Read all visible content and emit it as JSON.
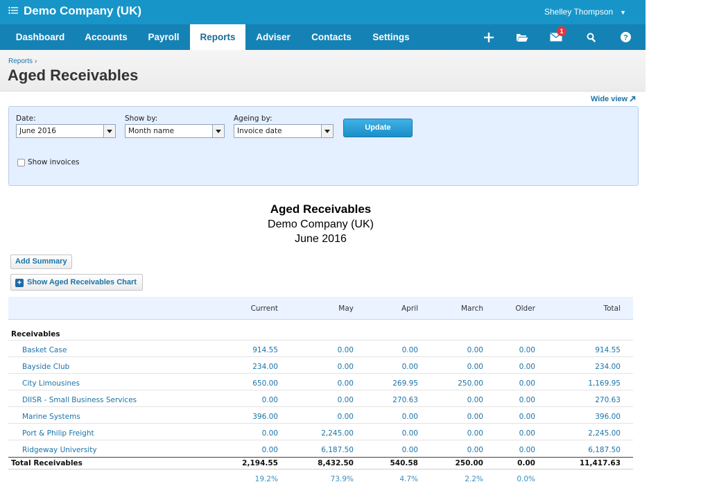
{
  "topbar": {
    "org_name": "Demo Company (UK)",
    "user_name": "Shelley Thompson",
    "caret": "▼"
  },
  "nav": {
    "items": [
      "Dashboard",
      "Accounts",
      "Payroll",
      "Reports",
      "Adviser",
      "Contacts",
      "Settings"
    ],
    "active": "Reports",
    "mail_badge": "1"
  },
  "breadcrumb": {
    "label": "Reports",
    "sep": "›"
  },
  "page_title": "Aged Receivables",
  "wide_view": "Wide view",
  "filters": {
    "date_label": "Date:",
    "date_value": "June 2016",
    "showby_label": "Show by:",
    "showby_value": "Month name",
    "ageing_label": "Ageing by:",
    "ageing_value": "Invoice date",
    "update_label": "Update",
    "show_invoices_label": "Show invoices"
  },
  "report": {
    "title": "Aged Receivables",
    "company": "Demo Company (UK)",
    "period": "June 2016",
    "add_summary": "Add Summary",
    "show_chart": "Show Aged Receivables Chart"
  },
  "table": {
    "columns": [
      "Current",
      "May",
      "April",
      "March",
      "Older",
      "Total"
    ],
    "section": "Receivables",
    "rows": [
      {
        "name": "Basket Case",
        "values": [
          "914.55",
          "0.00",
          "0.00",
          "0.00",
          "0.00",
          "914.55"
        ]
      },
      {
        "name": "Bayside Club",
        "values": [
          "234.00",
          "0.00",
          "0.00",
          "0.00",
          "0.00",
          "234.00"
        ]
      },
      {
        "name": "City Limousines",
        "values": [
          "650.00",
          "0.00",
          "269.95",
          "250.00",
          "0.00",
          "1,169.95"
        ]
      },
      {
        "name": "DIISR - Small Business Services",
        "values": [
          "0.00",
          "0.00",
          "270.63",
          "0.00",
          "0.00",
          "270.63"
        ]
      },
      {
        "name": "Marine Systems",
        "values": [
          "396.00",
          "0.00",
          "0.00",
          "0.00",
          "0.00",
          "396.00"
        ]
      },
      {
        "name": "Port & Philip Freight",
        "values": [
          "0.00",
          "2,245.00",
          "0.00",
          "0.00",
          "0.00",
          "2,245.00"
        ]
      },
      {
        "name": "Ridgeway University",
        "values": [
          "0.00",
          "6,187.50",
          "0.00",
          "0.00",
          "0.00",
          "6,187.50"
        ]
      }
    ],
    "total": {
      "name": "Total Receivables",
      "values": [
        "2,194.55",
        "8,432.50",
        "540.58",
        "250.00",
        "0.00",
        "11,417.63"
      ]
    },
    "percentages": [
      "19.2%",
      "73.9%",
      "4.7%",
      "2.2%",
      "0.0%"
    ]
  }
}
